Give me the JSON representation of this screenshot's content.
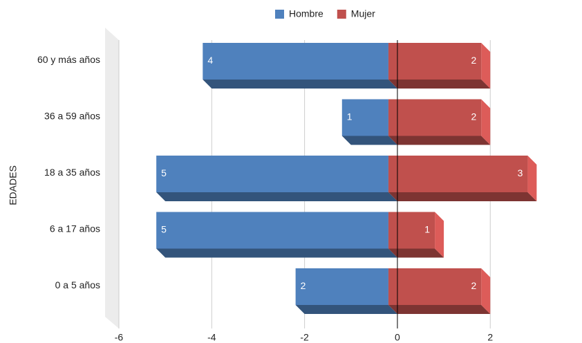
{
  "chart_data": {
    "type": "bar",
    "orientation": "horizontal",
    "y_label": "EDADES",
    "categories": [
      "60 y más años",
      "36 a 59 años",
      "18 a 35 años",
      "6 a 17 años",
      "0 a 5 años"
    ],
    "series": [
      {
        "name": "Hombre",
        "color": "#4f81bd",
        "values": [
          -4,
          -1,
          -5,
          -5,
          -2
        ],
        "value_labels": [
          "4",
          "1",
          "5",
          "5",
          "2"
        ]
      },
      {
        "name": "Mujer",
        "color": "#c0504d",
        "values": [
          2,
          2,
          3,
          1,
          2
        ]
      }
    ],
    "xlim": [
      -6,
      3.5
    ],
    "xticks": [
      -6,
      -4,
      -2,
      0,
      2
    ],
    "grid": true,
    "legend": "top"
  }
}
